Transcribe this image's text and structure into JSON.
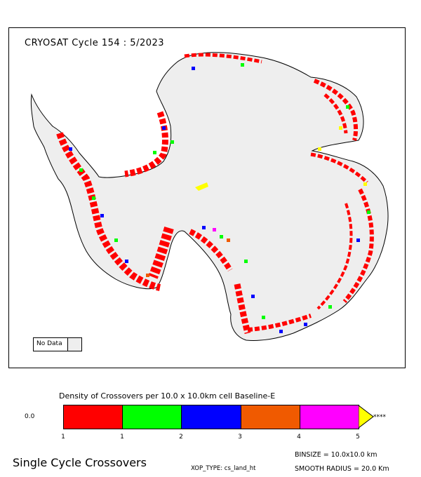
{
  "map": {
    "title": "CRYOSAT Cycle 154 : 5/2023",
    "no_data_label": "No Data",
    "colors": {
      "land_no_data": "#eeeeee",
      "red": "#ff0000",
      "green": "#00ff00",
      "blue": "#0000ff",
      "orange": "#f05a00",
      "magenta": "#ff00ff",
      "yellow": "#ffff00"
    }
  },
  "legend": {
    "title": "Density of Crossovers per  10.0 x  10.0km cell Baseline-E",
    "zero_label": "0.0",
    "segments": [
      "#ff0000",
      "#00ff00",
      "#0000ff",
      "#f05a00",
      "#ff00ff"
    ],
    "overflow_color": "#ffff00",
    "overflow_label": "****",
    "ticks": [
      "1",
      "1",
      "2",
      "3",
      "4",
      "5"
    ]
  },
  "footer": {
    "title": "Single Cycle Crossovers",
    "xop_type": "XOP_TYPE: cs_land_ht",
    "binsize": "BINSIZE = 10.0x10.0 km",
    "smooth_radius": "SMOOTH RADIUS =  20.0 Km"
  }
}
